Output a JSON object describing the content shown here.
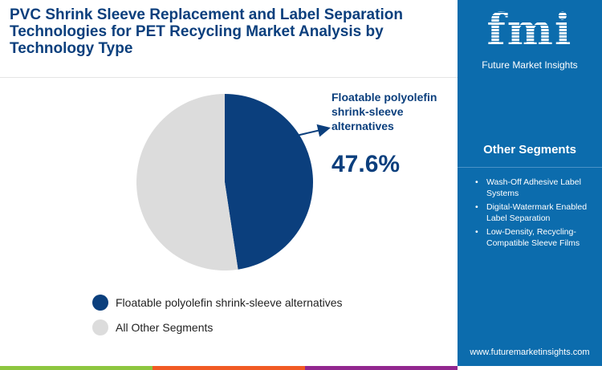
{
  "title": "PVC Shrink Sleeve Replacement and Label Separation Technologies for PET Recycling Market Analysis by Technology Type",
  "chart_data": {
    "type": "pie",
    "title": "PVC Shrink Sleeve Replacement and Label Separation Technologies for PET Recycling Market Analysis by Technology Type",
    "slices": [
      {
        "label": "Floatable polyolefin shrink-sleeve alternatives",
        "value": 47.6,
        "color": "#0b3f7d"
      },
      {
        "label": "All Other Segments",
        "value": 52.4,
        "color": "#dcdcdc"
      }
    ],
    "legend_position": "bottom",
    "callout": {
      "label": "Floatable polyolefin shrink-sleeve alternatives",
      "value": "47.6%"
    }
  },
  "panel": {
    "logo_text": "fmi",
    "logo_sub": "Future Market Insights",
    "segments_title": "Other Segments",
    "segments": [
      "Wash-Off Adhesive Label Systems",
      "Digital-Watermark Enabled Label Separation",
      "Low-Density, Recycling-Compatible Sleeve Films"
    ],
    "url": "www.futuremarketinsights.com"
  },
  "colors": {
    "bar": [
      "#8dc63f",
      "#f15a24",
      "#92278f"
    ]
  }
}
